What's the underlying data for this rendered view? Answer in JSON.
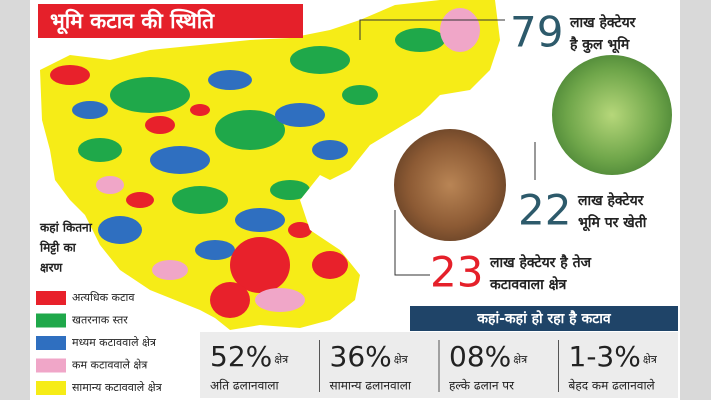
{
  "title": "भूमि कटाव की स्थिति",
  "callouts": [
    {
      "number": "79",
      "lines": [
        "लाख हेक्टेयर",
        "है कुल भूमि"
      ]
    },
    {
      "number": "22",
      "lines": [
        "लाख हेक्टेयर",
        "भूमि पर खेती"
      ]
    },
    {
      "number": "23",
      "lines": [
        "लाख हेक्टेयर है तेज",
        "कटाववाला क्षेत्र"
      ]
    }
  ],
  "legend": {
    "heading": [
      "कहां कितना",
      "मिट्टी का",
      "क्षरण"
    ],
    "items": [
      {
        "label": "अत्यधिक कटाव",
        "color": "#e8212b"
      },
      {
        "label": "खतरनाक स्तर",
        "color": "#1fa84a"
      },
      {
        "label": "मध्यम कटाववाले क्षेत्र",
        "color": "#2f6fc0"
      },
      {
        "label": "कम कटाववाले क्षेत्र",
        "color": "#f0a6c8"
      },
      {
        "label": "सामान्य कटाववाले क्षेत्र",
        "color": "#f6ec17"
      }
    ]
  },
  "slope": {
    "title": "कहां-कहां हो रहा है कटाव",
    "items": [
      {
        "value": "52%",
        "unit": "क्षेत्र",
        "label": "अति ढलानवाला"
      },
      {
        "value": "36%",
        "unit": "क्षेत्र",
        "label": "सामान्य ढलानवाला"
      },
      {
        "value": "08%",
        "unit": "क्षेत्र",
        "label": "हल्के ढलान पर"
      },
      {
        "value": "1-3%",
        "unit": "क्षेत्र",
        "label": "बेहद कम ढलानवाले"
      }
    ]
  }
}
